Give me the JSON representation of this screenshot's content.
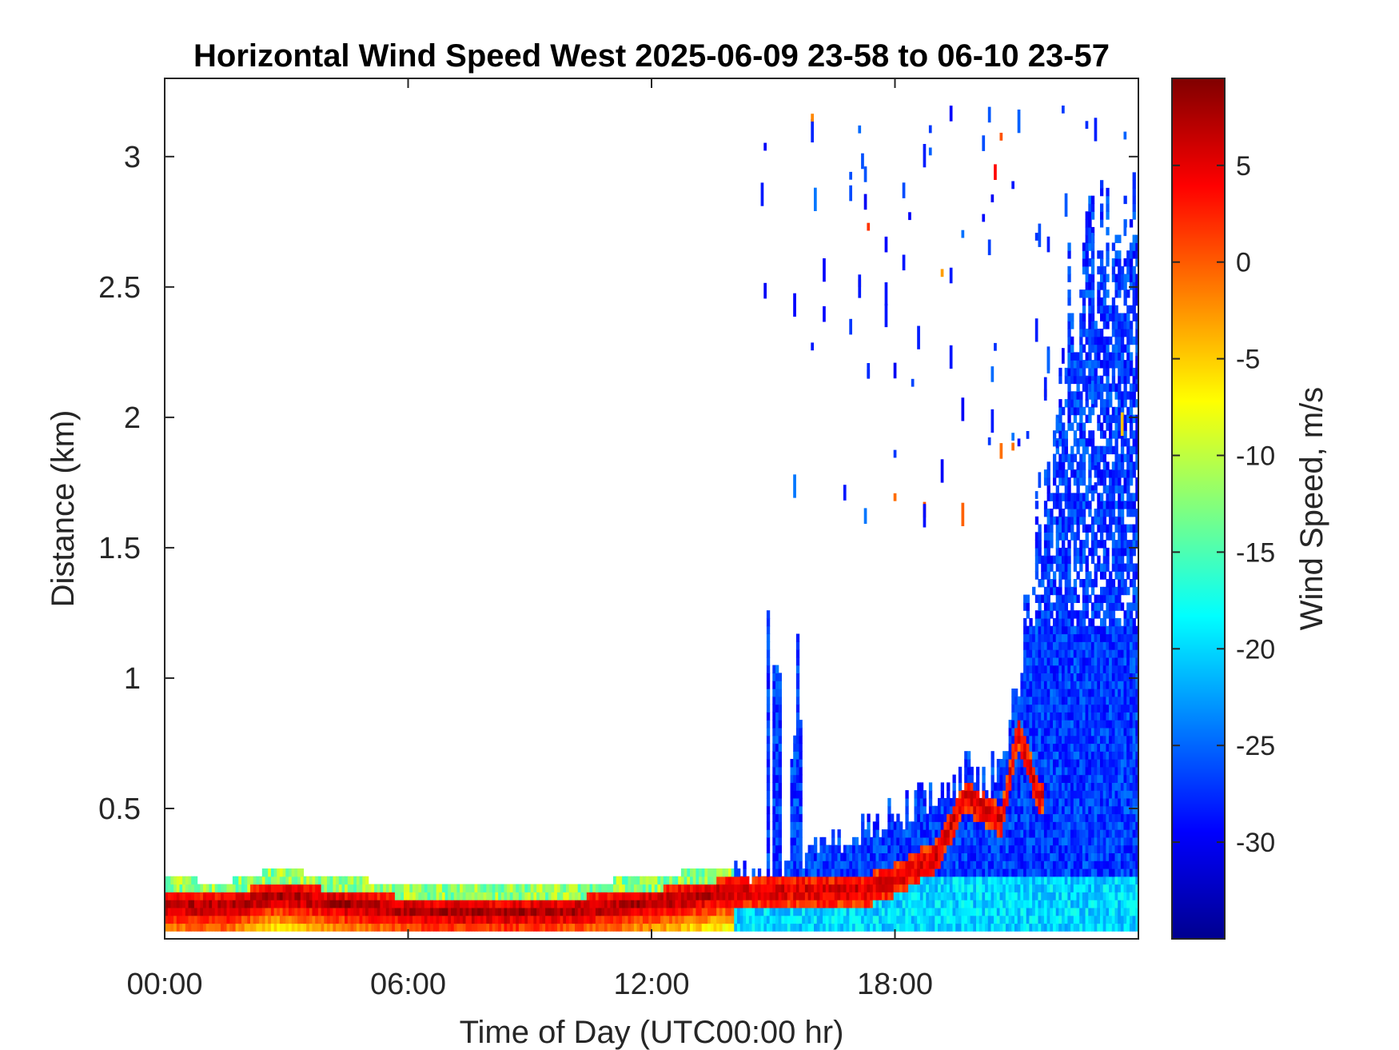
{
  "chart_data": {
    "type": "heatmap",
    "title": "Horizontal Wind Speed West 2025-06-09 23-58 to 06-10 23-57",
    "xlabel": "Time of Day (UTC00:00 hr)",
    "ylabel": "Distance (km)",
    "colorbar_label": "Wind Speed, m/s",
    "x_ticks": [
      {
        "value": 0,
        "label": "00:00"
      },
      {
        "value": 6,
        "label": "06:00"
      },
      {
        "value": 12,
        "label": "12:00"
      },
      {
        "value": 18,
        "label": "18:00"
      }
    ],
    "xlim": [
      0,
      24
    ],
    "y_ticks": [
      {
        "value": 0.5,
        "label": "0.5"
      },
      {
        "value": 1,
        "label": "1"
      },
      {
        "value": 1.5,
        "label": "1.5"
      },
      {
        "value": 2,
        "label": "2"
      },
      {
        "value": 2.5,
        "label": "2.5"
      },
      {
        "value": 3,
        "label": "3"
      }
    ],
    "ylim": [
      0.0,
      3.3
    ],
    "colorbar_ticks": [
      {
        "value": 5,
        "label": "5"
      },
      {
        "value": 0,
        "label": "0"
      },
      {
        "value": -5,
        "label": "-5"
      },
      {
        "value": -10,
        "label": "-10"
      },
      {
        "value": -15,
        "label": "-15"
      },
      {
        "value": -20,
        "label": "-20"
      },
      {
        "value": -25,
        "label": "-25"
      },
      {
        "value": -30,
        "label": "-30"
      }
    ],
    "clim": [
      -35,
      9.5
    ],
    "colormap": "jet",
    "colormap_stops": [
      "#00008f",
      "#0000ff",
      "#00ffff",
      "#ffff00",
      "#ff0000",
      "#800000"
    ],
    "features": {
      "low_level_jet": {
        "description": "red core of positive speed near the surface",
        "points": [
          {
            "t": 0.0,
            "h": 0.13
          },
          {
            "t": 1.5,
            "h": 0.12
          },
          {
            "t": 2.7,
            "h": 0.17
          },
          {
            "t": 4.0,
            "h": 0.14
          },
          {
            "t": 6.0,
            "h": 0.11
          },
          {
            "t": 8.0,
            "h": 0.1
          },
          {
            "t": 10.0,
            "h": 0.11
          },
          {
            "t": 12.0,
            "h": 0.14
          },
          {
            "t": 13.8,
            "h": 0.18
          },
          {
            "t": 17.3,
            "h": 0.19
          },
          {
            "t": 18.0,
            "h": 0.23
          },
          {
            "t": 19.0,
            "h": 0.32
          },
          {
            "t": 19.7,
            "h": 0.55
          },
          {
            "t": 20.6,
            "h": 0.45
          },
          {
            "t": 21.0,
            "h": 0.8
          },
          {
            "t": 21.5,
            "h": 0.55
          }
        ]
      },
      "convective_layer": {
        "description": "blue negative-speed region growing in the afternoon",
        "start_hour": 14.0,
        "max_height_km": 2.6
      }
    }
  }
}
